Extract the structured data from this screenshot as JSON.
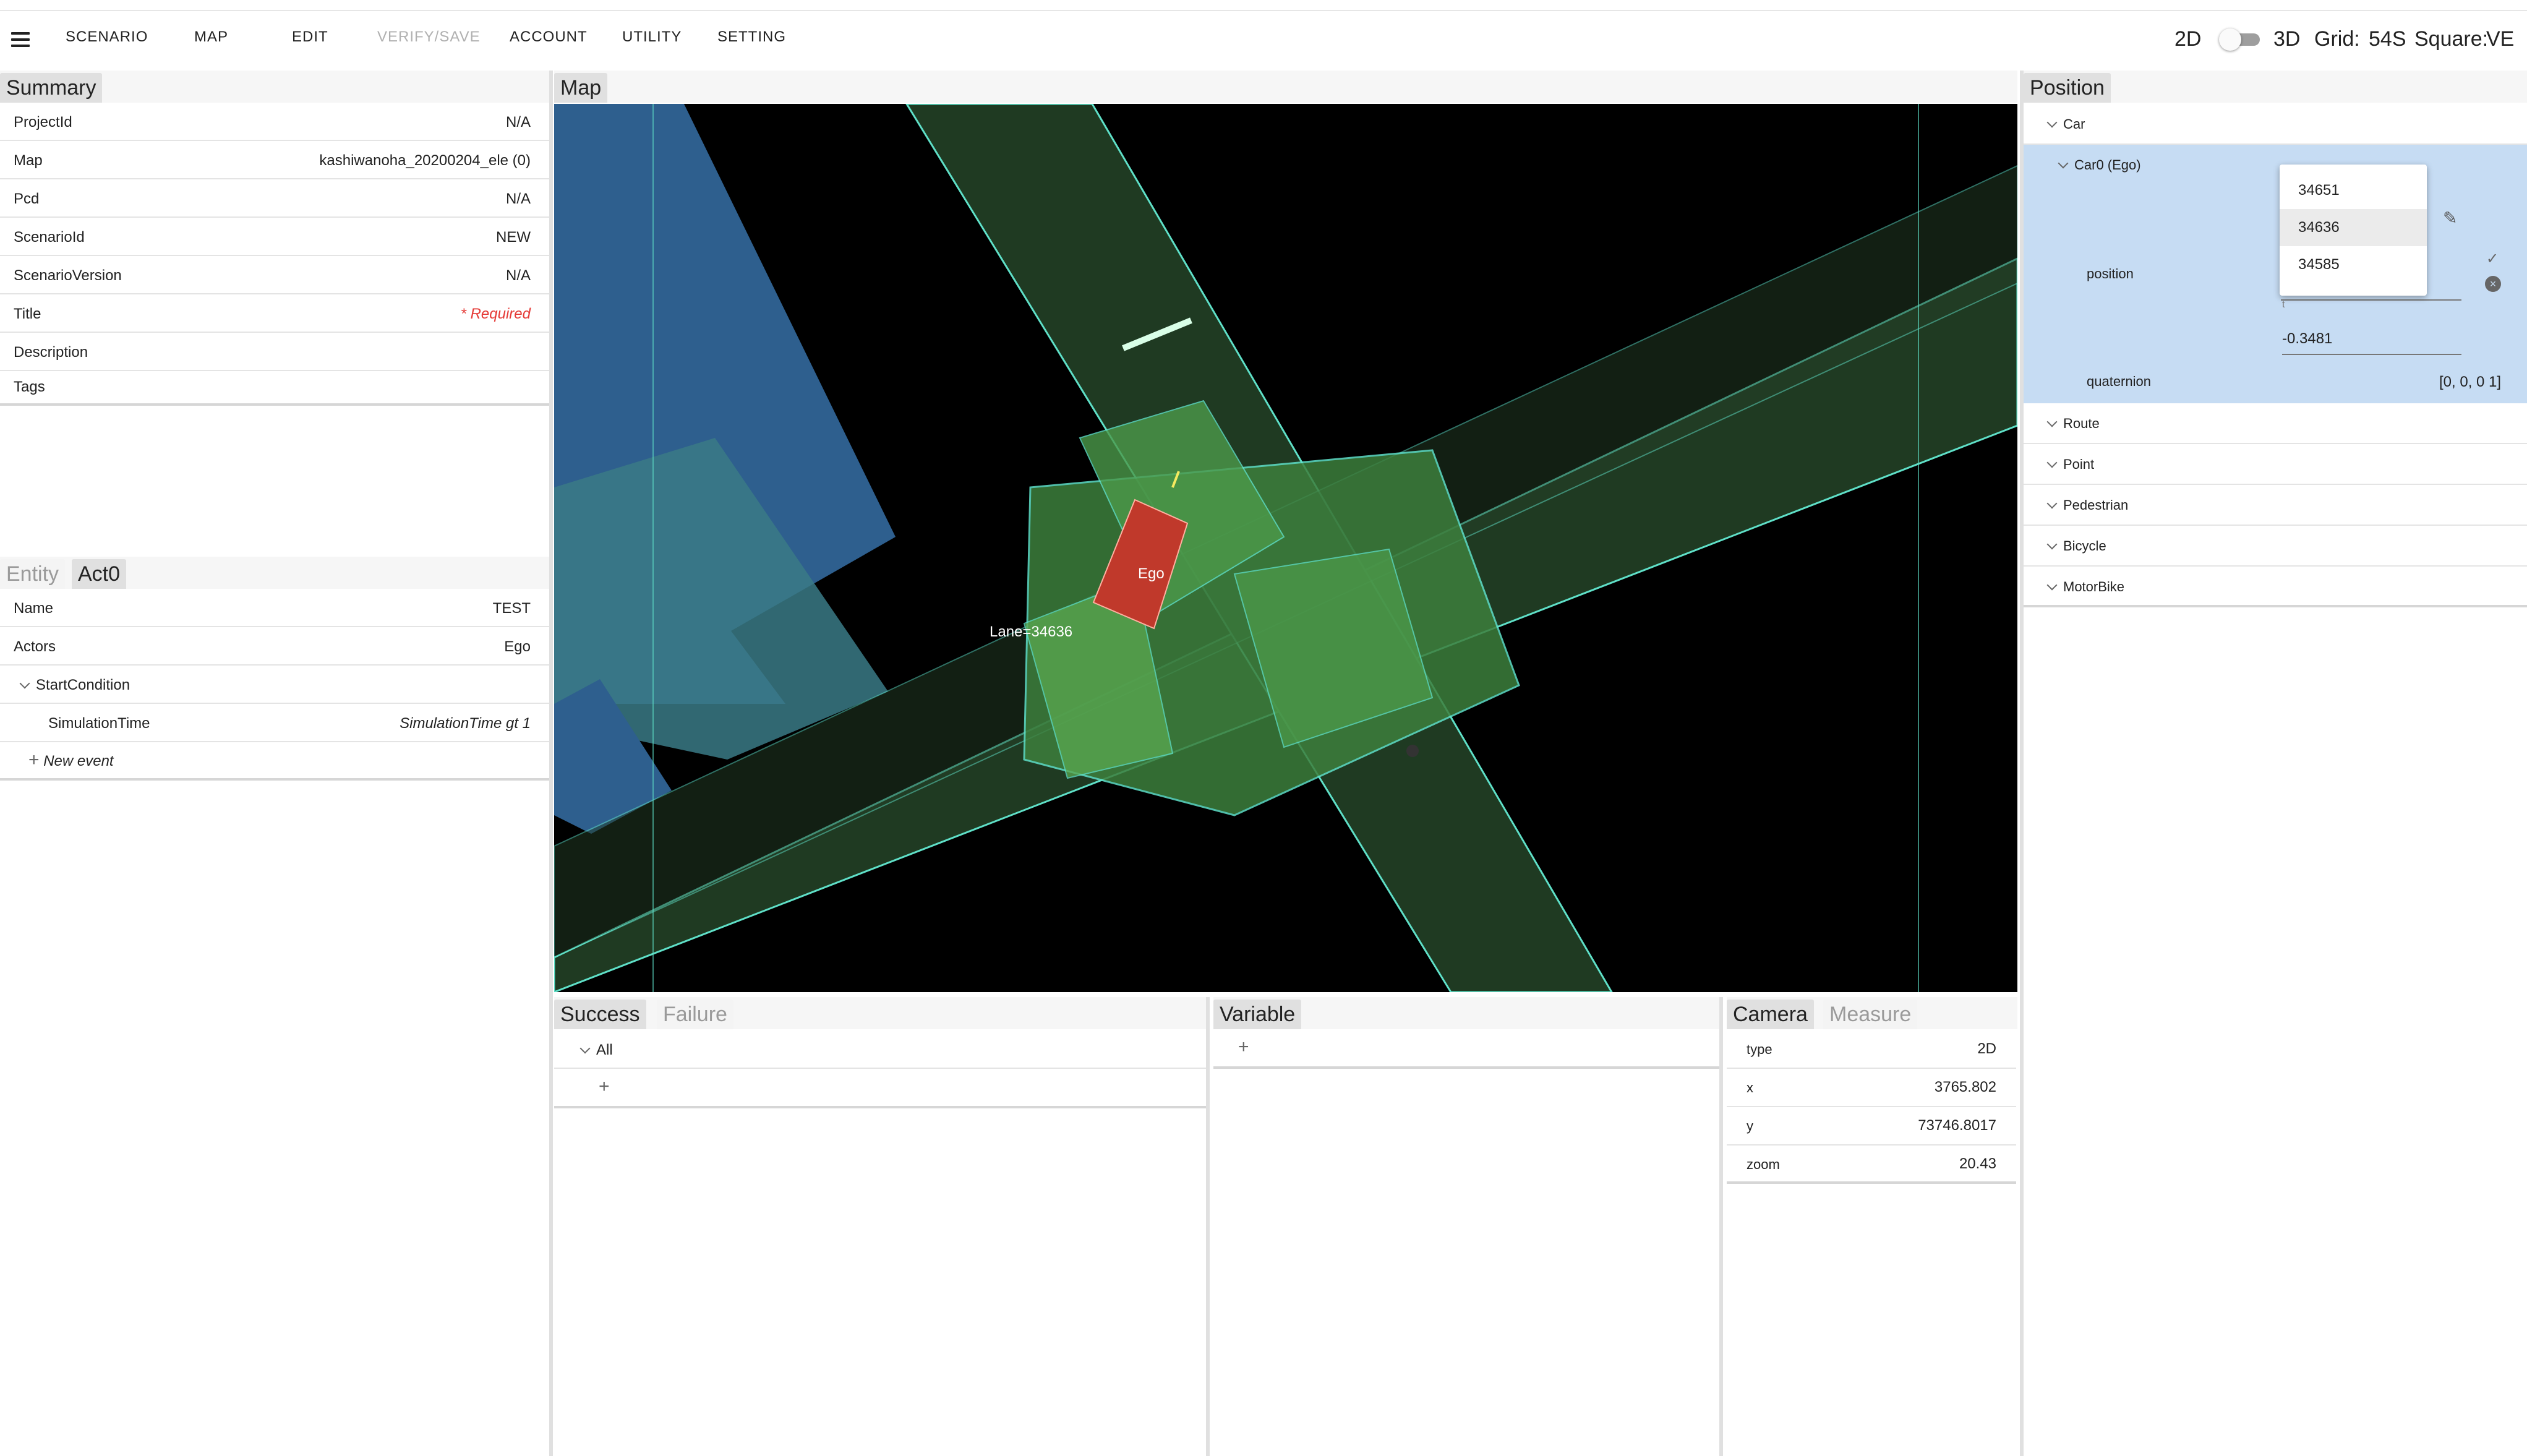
{
  "toolbar": {
    "menu_items": [
      "SCENARIO",
      "MAP",
      "EDIT",
      "VERIFY/SAVE",
      "ACCOUNT",
      "UTILITY",
      "SETTING"
    ],
    "mode_2d": "2D",
    "mode_3d": "3D",
    "grid_label": "Grid:",
    "grid_value": "54S",
    "square_label": "Square:",
    "square_value": "VE"
  },
  "summary": {
    "tab": "Summary",
    "rows": [
      {
        "key": "ProjectId",
        "value": "N/A"
      },
      {
        "key": "Map",
        "value": "kashiwanoha_20200204_ele (0)"
      },
      {
        "key": "Pcd",
        "value": "N/A"
      },
      {
        "key": "ScenarioId",
        "value": "NEW"
      },
      {
        "key": "ScenarioVersion",
        "value": "N/A"
      },
      {
        "key": "Title",
        "value": "* Required"
      },
      {
        "key": "Description",
        "value": ""
      },
      {
        "key": "Tags",
        "value": ""
      }
    ]
  },
  "act": {
    "tabs": [
      "Entity",
      "Act0"
    ],
    "name_key": "Name",
    "name_value": "TEST",
    "actors_key": "Actors",
    "actors_value": "Ego",
    "start_condition": "StartCondition",
    "sim_key": "SimulationTime",
    "sim_value": "SimulationTime gt 1",
    "new_event": "New event"
  },
  "map": {
    "tab": "Map",
    "ego_label": "Ego",
    "lane_label": "Lane=34636"
  },
  "position": {
    "tab": "Position",
    "car_group": "Car",
    "car0": "Car0 (Ego)",
    "position_label": "position",
    "field_sublabel": "t",
    "field_value": "-0.3481",
    "quaternion_label": "quaternion",
    "quaternion_value": "[0, 0, 0 1]",
    "dropdown_options": [
      "34651",
      "34636",
      "34585"
    ],
    "groups": [
      "Route",
      "Point",
      "Pedestrian",
      "Bicycle",
      "MotorBike"
    ]
  },
  "success": {
    "tabs": [
      "Success",
      "Failure"
    ],
    "all_label": "All"
  },
  "variable": {
    "tab": "Variable"
  },
  "camera": {
    "tabs": [
      "Camera",
      "Measure"
    ],
    "rows": [
      {
        "key": "type",
        "value": "2D"
      },
      {
        "key": "x",
        "value": "3765.802"
      },
      {
        "key": "y",
        "value": "73746.8017"
      },
      {
        "key": "zoom",
        "value": "20.43"
      }
    ]
  },
  "colors": {
    "map_bg": "#000000",
    "lane_fill": "#1f3a22",
    "lane_line": "#5fe0c8",
    "building": "#2e5f8e",
    "ego": "#c0392b",
    "selection": "#c6dcf3",
    "required": "#e53935"
  }
}
